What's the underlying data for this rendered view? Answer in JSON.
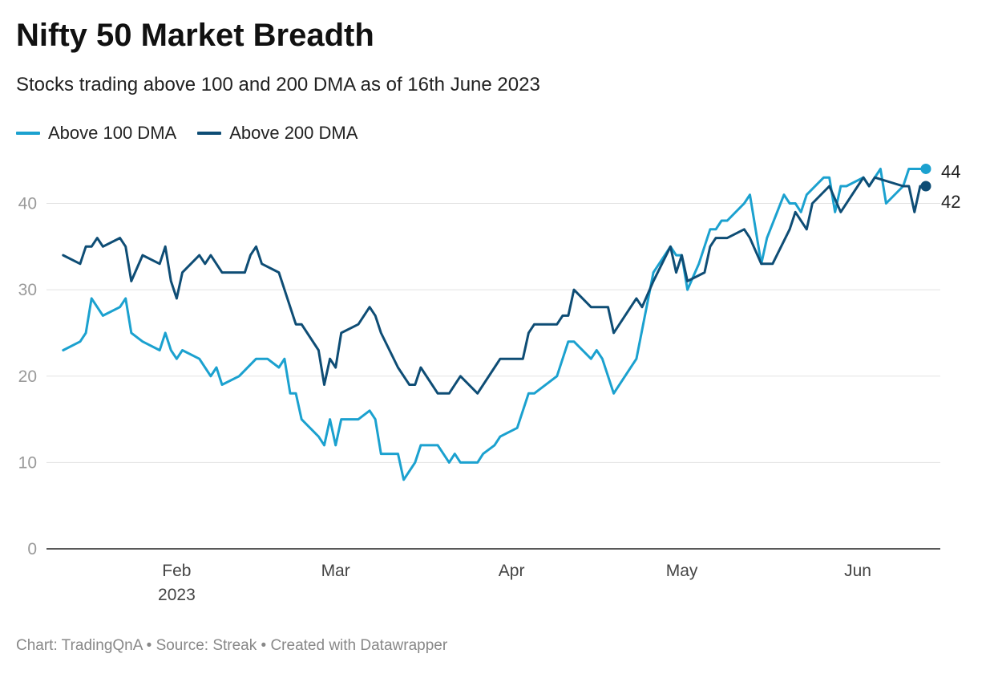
{
  "title": "Nifty 50 Market Breadth",
  "subtitle": "Stocks trading above 100 and 200 DMA as of 16th June 2023",
  "footer": "Chart: TradingQnA • Source: Streak • Created with Datawrapper",
  "colors": {
    "above100": "#1ba1cf",
    "above200": "#0e4d75",
    "grid": "#e3e3e3",
    "axis": "#222222"
  },
  "chart_data": {
    "type": "line",
    "title": "Nifty 50 Market Breadth",
    "subtitle": "Stocks trading above 100 and 200 DMA as of 16th June 2023",
    "ylim": [
      0,
      45
    ],
    "yticks": [
      0,
      10,
      20,
      30,
      40
    ],
    "xlim": [
      0,
      155
    ],
    "xticks": [
      {
        "value": 23,
        "label": "Feb",
        "sublabel": "2023"
      },
      {
        "value": 51,
        "label": "Mar",
        "sublabel": ""
      },
      {
        "value": 82,
        "label": "Apr",
        "sublabel": ""
      },
      {
        "value": 112,
        "label": "May",
        "sublabel": ""
      },
      {
        "value": 143,
        "label": "Jun",
        "sublabel": ""
      }
    ],
    "grid": true,
    "legend": "top-left",
    "series": [
      {
        "name": "Above 100 DMA",
        "color": "#1ba1cf",
        "end_label": "44",
        "points": [
          [
            3,
            23
          ],
          [
            6,
            24
          ],
          [
            7,
            25
          ],
          [
            8,
            29
          ],
          [
            10,
            27
          ],
          [
            13,
            28
          ],
          [
            14,
            29
          ],
          [
            15,
            25
          ],
          [
            17,
            24
          ],
          [
            20,
            23
          ],
          [
            21,
            25
          ],
          [
            22,
            23
          ],
          [
            23,
            22
          ],
          [
            24,
            23
          ],
          [
            27,
            22
          ],
          [
            29,
            20
          ],
          [
            30,
            21
          ],
          [
            31,
            19
          ],
          [
            34,
            20
          ],
          [
            37,
            22
          ],
          [
            39,
            22
          ],
          [
            41,
            21
          ],
          [
            42,
            22
          ],
          [
            43,
            18
          ],
          [
            44,
            18
          ],
          [
            45,
            15
          ],
          [
            48,
            13
          ],
          [
            49,
            12
          ],
          [
            50,
            15
          ],
          [
            51,
            12
          ],
          [
            52,
            15
          ],
          [
            55,
            15
          ],
          [
            57,
            16
          ],
          [
            58,
            15
          ],
          [
            59,
            11
          ],
          [
            62,
            11
          ],
          [
            63,
            8
          ],
          [
            65,
            10
          ],
          [
            66,
            12
          ],
          [
            69,
            12
          ],
          [
            71,
            10
          ],
          [
            72,
            11
          ],
          [
            73,
            10
          ],
          [
            76,
            10
          ],
          [
            77,
            11
          ],
          [
            79,
            12
          ],
          [
            80,
            13
          ],
          [
            83,
            14
          ],
          [
            85,
            18
          ],
          [
            86,
            18
          ],
          [
            90,
            20
          ],
          [
            92,
            24
          ],
          [
            93,
            24
          ],
          [
            96,
            22
          ],
          [
            97,
            23
          ],
          [
            98,
            22
          ],
          [
            100,
            18
          ],
          [
            104,
            22
          ],
          [
            107,
            32
          ],
          [
            110,
            35
          ],
          [
            111,
            34
          ],
          [
            112,
            34
          ],
          [
            113,
            30
          ],
          [
            115,
            33
          ],
          [
            117,
            37
          ],
          [
            118,
            37
          ],
          [
            119,
            38
          ],
          [
            120,
            38
          ],
          [
            123,
            40
          ],
          [
            124,
            41
          ],
          [
            126,
            33
          ],
          [
            127,
            36
          ],
          [
            130,
            41
          ],
          [
            131,
            40
          ],
          [
            132,
            40
          ],
          [
            133,
            39
          ],
          [
            134,
            41
          ],
          [
            137,
            43
          ],
          [
            138,
            43
          ],
          [
            139,
            39
          ],
          [
            140,
            42
          ],
          [
            141,
            42
          ],
          [
            144,
            43
          ],
          [
            145,
            42
          ],
          [
            147,
            44
          ],
          [
            148,
            40
          ],
          [
            151,
            42
          ],
          [
            152,
            44
          ],
          [
            154,
            44
          ],
          [
            155,
            44
          ]
        ]
      },
      {
        "name": "Above 200 DMA",
        "color": "#0e4d75",
        "end_label": "42",
        "points": [
          [
            3,
            34
          ],
          [
            6,
            33
          ],
          [
            7,
            35
          ],
          [
            8,
            35
          ],
          [
            9,
            36
          ],
          [
            10,
            35
          ],
          [
            13,
            36
          ],
          [
            14,
            35
          ],
          [
            15,
            31
          ],
          [
            17,
            34
          ],
          [
            20,
            33
          ],
          [
            21,
            35
          ],
          [
            22,
            31
          ],
          [
            23,
            29
          ],
          [
            24,
            32
          ],
          [
            27,
            34
          ],
          [
            28,
            33
          ],
          [
            29,
            34
          ],
          [
            31,
            32
          ],
          [
            35,
            32
          ],
          [
            36,
            34
          ],
          [
            37,
            35
          ],
          [
            38,
            33
          ],
          [
            41,
            32
          ],
          [
            44,
            26
          ],
          [
            45,
            26
          ],
          [
            48,
            23
          ],
          [
            49,
            19
          ],
          [
            50,
            22
          ],
          [
            51,
            21
          ],
          [
            52,
            25
          ],
          [
            55,
            26
          ],
          [
            57,
            28
          ],
          [
            58,
            27
          ],
          [
            59,
            25
          ],
          [
            62,
            21
          ],
          [
            64,
            19
          ],
          [
            65,
            19
          ],
          [
            66,
            21
          ],
          [
            69,
            18
          ],
          [
            71,
            18
          ],
          [
            73,
            20
          ],
          [
            76,
            18
          ],
          [
            79,
            21
          ],
          [
            80,
            22
          ],
          [
            83,
            22
          ],
          [
            84,
            22
          ],
          [
            85,
            25
          ],
          [
            86,
            26
          ],
          [
            90,
            26
          ],
          [
            91,
            27
          ],
          [
            92,
            27
          ],
          [
            93,
            30
          ],
          [
            96,
            28
          ],
          [
            99,
            28
          ],
          [
            100,
            25
          ],
          [
            103,
            28
          ],
          [
            104,
            29
          ],
          [
            105,
            28
          ],
          [
            107,
            31
          ],
          [
            110,
            35
          ],
          [
            111,
            32
          ],
          [
            112,
            34
          ],
          [
            113,
            31
          ],
          [
            116,
            32
          ],
          [
            117,
            35
          ],
          [
            118,
            36
          ],
          [
            120,
            36
          ],
          [
            123,
            37
          ],
          [
            124,
            36
          ],
          [
            126,
            33
          ],
          [
            127,
            33
          ],
          [
            128,
            33
          ],
          [
            131,
            37
          ],
          [
            132,
            39
          ],
          [
            134,
            37
          ],
          [
            135,
            40
          ],
          [
            138,
            42
          ],
          [
            140,
            39
          ],
          [
            143,
            42
          ],
          [
            144,
            43
          ],
          [
            145,
            42
          ],
          [
            146,
            43
          ],
          [
            151,
            42
          ],
          [
            152,
            42
          ],
          [
            153,
            39
          ],
          [
            154,
            42
          ],
          [
            155,
            42
          ]
        ]
      }
    ]
  }
}
